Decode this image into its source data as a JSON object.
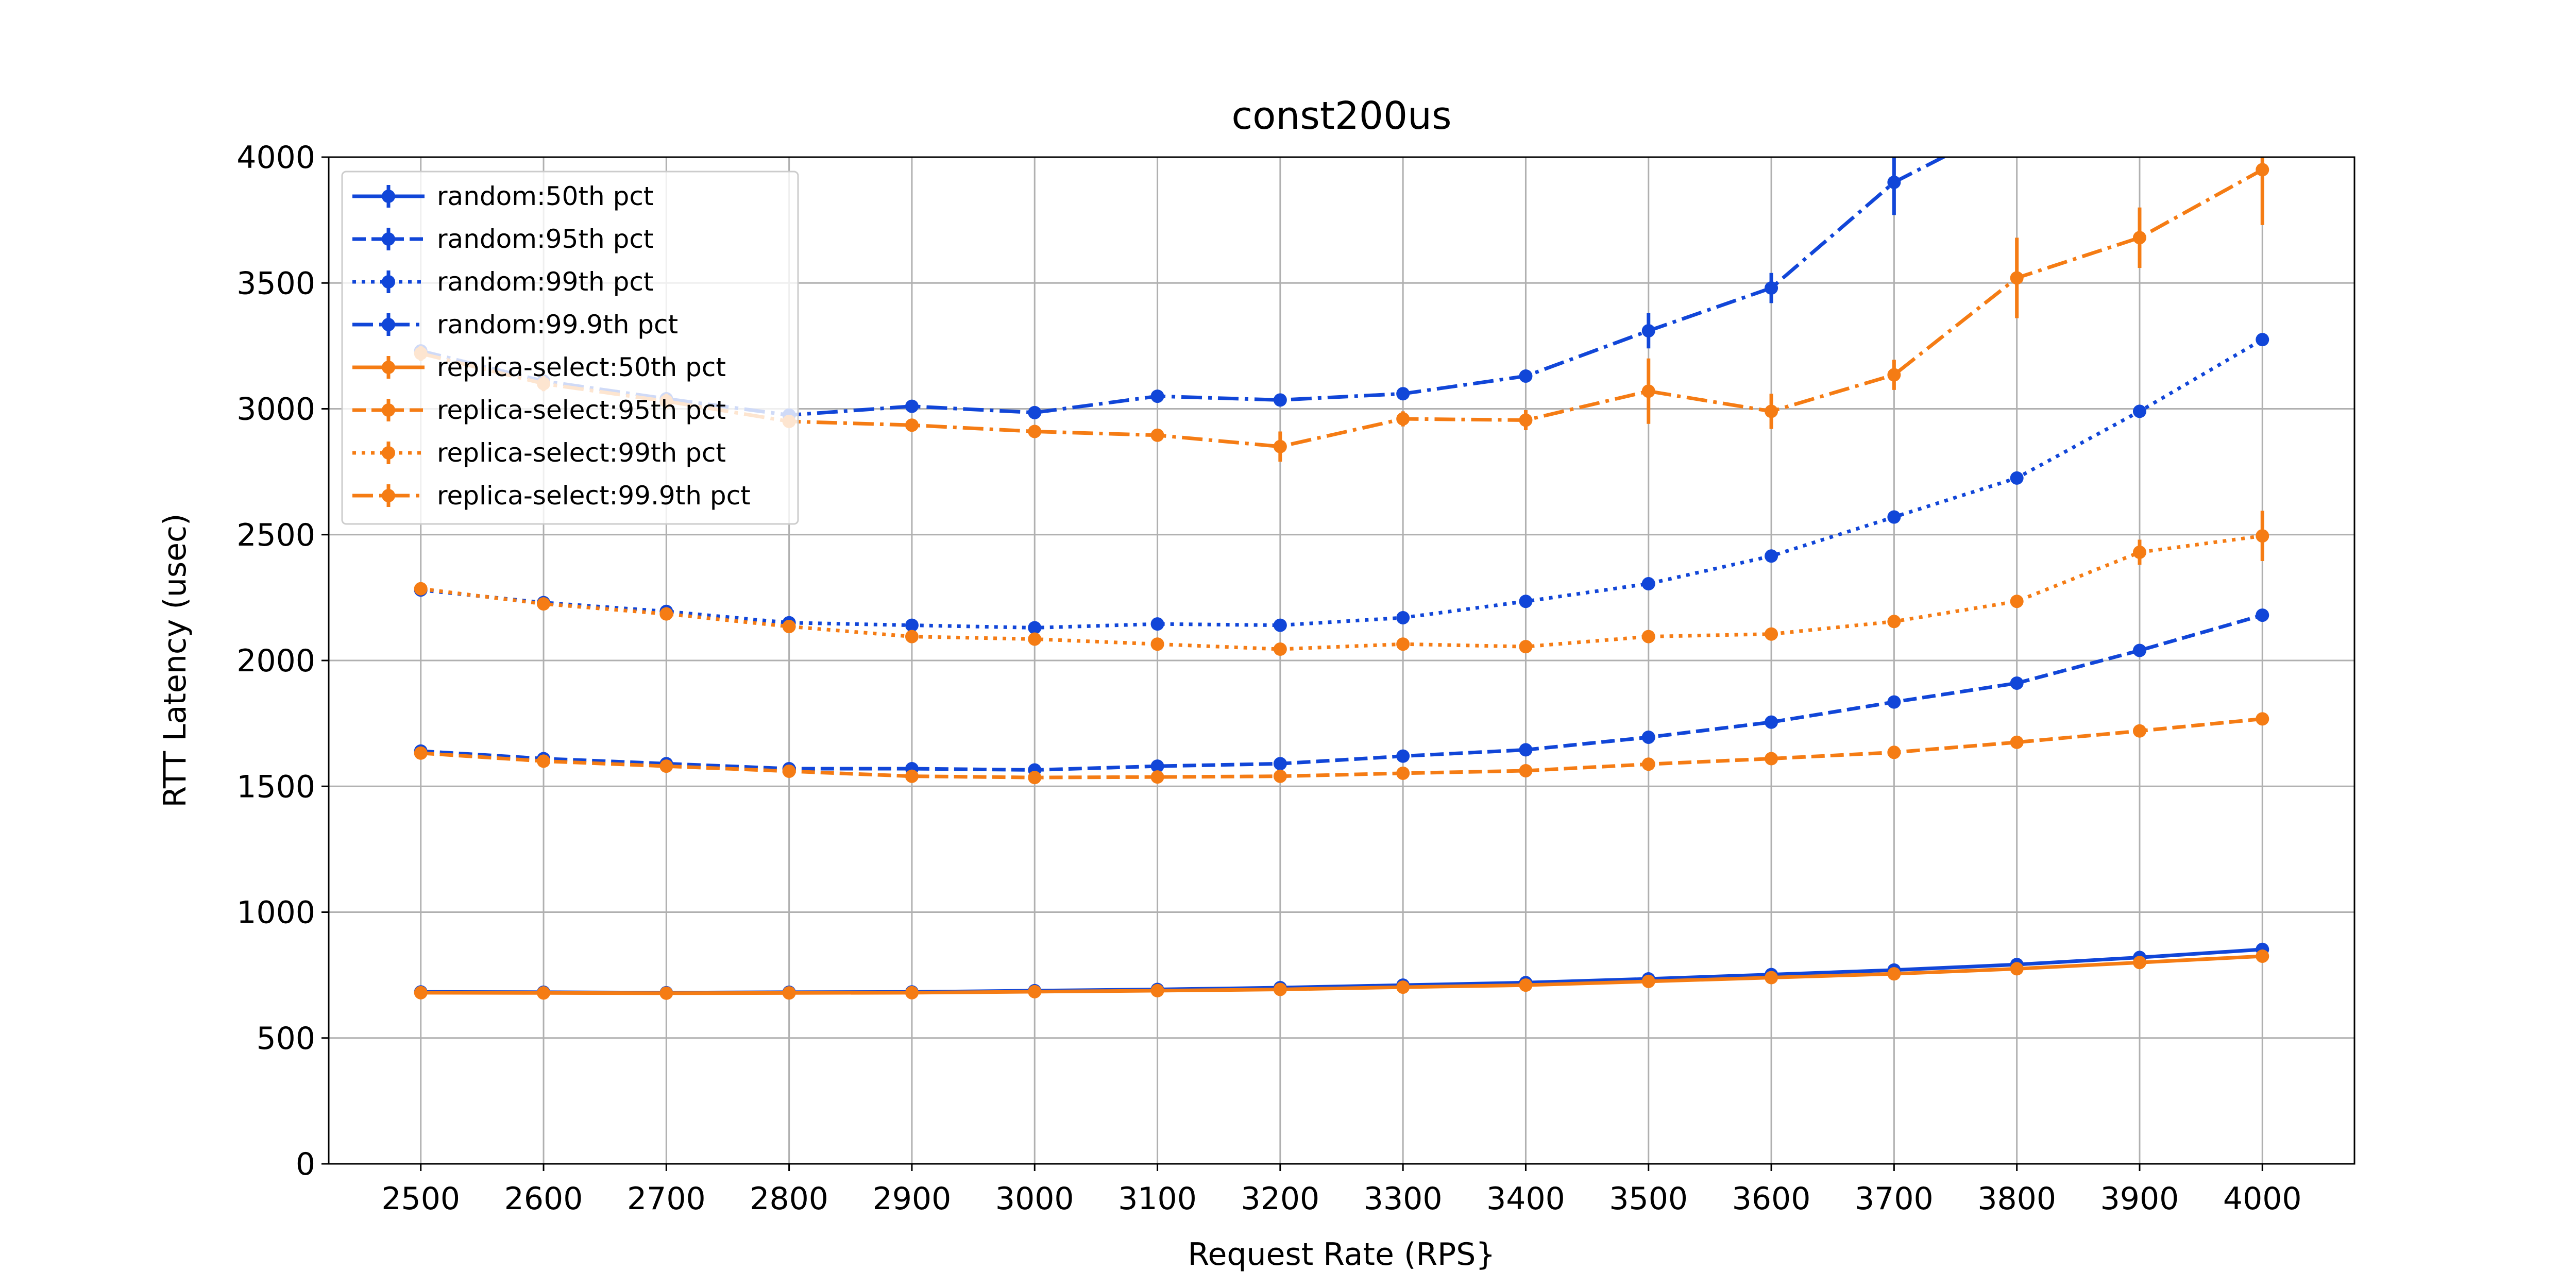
{
  "chart_data": {
    "type": "line",
    "title": "const200us",
    "x_label": "Request Rate (RPS}",
    "y_label": "RTT Latency (usec)",
    "x": [
      2500,
      2600,
      2700,
      2800,
      2900,
      3000,
      3100,
      3200,
      3300,
      3400,
      3500,
      3600,
      3700,
      3800,
      3900,
      4000
    ],
    "xlim": [
      2425,
      4075
    ],
    "xticks": [
      2500,
      2600,
      2700,
      2800,
      2900,
      3000,
      3100,
      3200,
      3300,
      3400,
      3500,
      3600,
      3700,
      3800,
      3900,
      4000
    ],
    "ylim": [
      0,
      4000
    ],
    "yticks": [
      0,
      500,
      1000,
      1500,
      2000,
      2500,
      3000,
      3500,
      4000
    ],
    "grid": true,
    "legend": "upper left",
    "series": [
      {
        "name": "random:50th pct",
        "color": "#1146d8",
        "linestyle": "solid",
        "values": [
          683,
          682,
          680,
          682,
          683,
          688,
          693,
          700,
          710,
          720,
          735,
          752,
          770,
          792,
          820,
          852
        ]
      },
      {
        "name": "random:95th pct",
        "color": "#1146d8",
        "linestyle": "dashed",
        "values": [
          1640,
          1610,
          1590,
          1570,
          1570,
          1565,
          1580,
          1590,
          1620,
          1645,
          1695,
          1755,
          1835,
          1910,
          2040,
          2180
        ]
      },
      {
        "name": "random:99th pct",
        "color": "#1146d8",
        "linestyle": "dotted",
        "values": [
          2280,
          2230,
          2195,
          2150,
          2140,
          2130,
          2145,
          2140,
          2170,
          2235,
          2305,
          2415,
          2570,
          2725,
          2990,
          3275
        ]
      },
      {
        "name": "random:99.9th pct",
        "color": "#1146d8",
        "linestyle": "dashdot",
        "values": [
          3230,
          3110,
          3040,
          2975,
          3010,
          2985,
          3050,
          3035,
          3060,
          3130,
          3310,
          3480,
          3900,
          4150,
          null,
          null
        ],
        "errors": [
          20,
          20,
          20,
          20,
          25,
          20,
          20,
          20,
          20,
          20,
          70,
          60,
          130,
          150,
          null,
          null
        ]
      },
      {
        "name": "replica-select:50th pct",
        "color": "#f57c14",
        "linestyle": "solid",
        "values": [
          680,
          679,
          678,
          679,
          680,
          684,
          688,
          693,
          702,
          710,
          725,
          740,
          755,
          775,
          800,
          825
        ]
      },
      {
        "name": "replica-select:95th pct",
        "color": "#f57c14",
        "linestyle": "dashed",
        "values": [
          1632,
          1600,
          1580,
          1560,
          1540,
          1535,
          1537,
          1540,
          1552,
          1562,
          1588,
          1610,
          1635,
          1675,
          1720,
          1768
        ]
      },
      {
        "name": "replica-select:99th pct",
        "color": "#f57c14",
        "linestyle": "dotted",
        "values": [
          2285,
          2225,
          2185,
          2135,
          2095,
          2085,
          2065,
          2045,
          2065,
          2055,
          2095,
          2105,
          2155,
          2235,
          2430,
          2495
        ],
        "errors": [
          10,
          10,
          10,
          10,
          10,
          10,
          10,
          10,
          10,
          10,
          15,
          15,
          20,
          20,
          50,
          100
        ]
      },
      {
        "name": "replica-select:99.9th pct",
        "color": "#f57c14",
        "linestyle": "dashdot",
        "values": [
          3220,
          3100,
          3030,
          2950,
          2935,
          2910,
          2895,
          2850,
          2960,
          2955,
          3070,
          2990,
          3135,
          3520,
          3680,
          3950
        ],
        "errors": [
          30,
          30,
          30,
          25,
          25,
          25,
          25,
          60,
          30,
          40,
          130,
          70,
          60,
          160,
          120,
          220
        ]
      }
    ]
  }
}
